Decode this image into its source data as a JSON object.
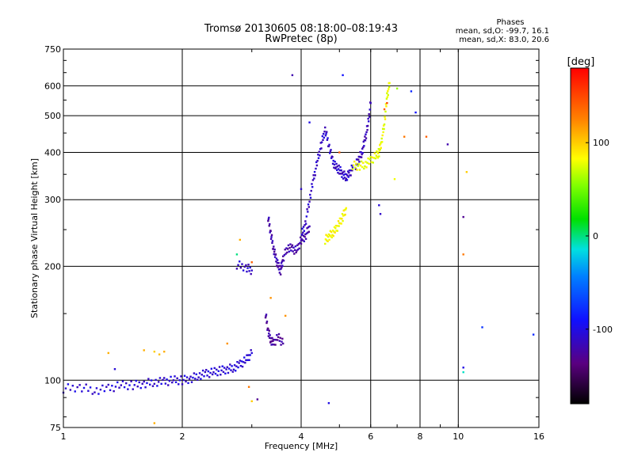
{
  "chart_data": {
    "type": "scatter",
    "title": "Tromsø 20130605 08:18:00–08:19:43",
    "subtitle": "RwPretec (8p)",
    "xlabel": "Frequency [MHz]",
    "ylabel": "Stationary phase Virtual Height [km]",
    "x_scale": "log",
    "y_scale": "log",
    "xlim": [
      1,
      16
    ],
    "ylim": [
      75,
      750
    ],
    "x_ticks": [
      1,
      2,
      4,
      6,
      8,
      10,
      16
    ],
    "x_tick_labels": [
      "1",
      "2",
      "4",
      "6",
      "8",
      "10",
      "16"
    ],
    "y_ticks": [
      75,
      100,
      200,
      300,
      400,
      500,
      600,
      750
    ],
    "y_tick_labels": [
      "75",
      "100",
      "200",
      "300",
      "400",
      "500",
      "600",
      "750"
    ],
    "grid": true,
    "stats": {
      "heading": "Phases",
      "line_o": "mean, sd,O: -99.7, 16.1",
      "line_x": "mean, sd,X: 83.0, 20.6"
    },
    "colorbar": {
      "label": "[deg]",
      "range": [
        -180,
        180
      ],
      "ticks": [
        100,
        0,
        -100
      ],
      "tick_labels": [
        "100",
        "0",
        "-100"
      ]
    },
    "trace_segments": [
      {
        "phase": -105,
        "points": [
          [
            1.0,
            95
          ],
          [
            1.1,
            96
          ],
          [
            1.2,
            94
          ],
          [
            1.3,
            95
          ],
          [
            1.4,
            97
          ],
          [
            1.5,
            97
          ],
          [
            1.6,
            98
          ],
          [
            1.7,
            99
          ],
          [
            1.8,
            99
          ],
          [
            1.9,
            100
          ],
          [
            2.0,
            100
          ],
          [
            2.1,
            101
          ],
          [
            2.2,
            103
          ],
          [
            2.3,
            104
          ],
          [
            2.4,
            105
          ],
          [
            2.5,
            106
          ],
          [
            2.6,
            107
          ],
          [
            2.7,
            108
          ],
          [
            2.8,
            110
          ],
          [
            2.9,
            113
          ],
          [
            3.0,
            118
          ]
        ]
      },
      {
        "phase": -110,
        "points": [
          [
            2.75,
            202
          ],
          [
            2.9,
            199
          ],
          [
            3.0,
            195
          ]
        ]
      },
      {
        "phase": -120,
        "points": [
          [
            3.3,
            270
          ],
          [
            3.35,
            245
          ],
          [
            3.4,
            225
          ],
          [
            3.45,
            210
          ],
          [
            3.5,
            200
          ],
          [
            3.55,
            195
          ],
          [
            3.6,
            210
          ],
          [
            3.7,
            225
          ],
          [
            3.8,
            222
          ],
          [
            3.9,
            220
          ],
          [
            4.0,
            235
          ],
          [
            4.1,
            240
          ],
          [
            4.2,
            255
          ]
        ]
      },
      {
        "phase": -125,
        "points": [
          [
            3.25,
            150
          ],
          [
            3.3,
            135
          ],
          [
            3.35,
            128
          ],
          [
            3.4,
            125
          ],
          [
            3.5,
            130
          ],
          [
            3.6,
            125
          ]
        ]
      },
      {
        "phase": -110,
        "points": [
          [
            4.0,
            240
          ],
          [
            4.1,
            260
          ],
          [
            4.2,
            300
          ],
          [
            4.3,
            340
          ],
          [
            4.4,
            380
          ],
          [
            4.5,
            420
          ],
          [
            4.6,
            460
          ],
          [
            4.7,
            420
          ],
          [
            4.8,
            380
          ],
          [
            4.9,
            365
          ],
          [
            5.0,
            360
          ],
          [
            5.1,
            350
          ],
          [
            5.2,
            345
          ],
          [
            5.3,
            350
          ],
          [
            5.4,
            365
          ]
        ]
      },
      {
        "phase": -115,
        "points": [
          [
            5.5,
            370
          ],
          [
            5.6,
            385
          ],
          [
            5.7,
            400
          ],
          [
            5.8,
            430
          ],
          [
            5.9,
            470
          ],
          [
            6.0,
            540
          ]
        ]
      },
      {
        "phase": 85,
        "points": [
          [
            4.6,
            235
          ],
          [
            4.7,
            240
          ],
          [
            4.8,
            245
          ],
          [
            4.9,
            250
          ],
          [
            5.0,
            260
          ],
          [
            5.1,
            270
          ],
          [
            5.2,
            285
          ]
        ]
      },
      {
        "phase": 80,
        "points": [
          [
            5.4,
            370
          ],
          [
            5.6,
            368
          ],
          [
            5.8,
            372
          ],
          [
            6.0,
            380
          ],
          [
            6.2,
            392
          ],
          [
            6.3,
            400
          ],
          [
            6.4,
            430
          ],
          [
            6.5,
            480
          ],
          [
            6.6,
            560
          ],
          [
            6.7,
            610
          ]
        ]
      }
    ],
    "scatter_points": [
      {
        "x": 1.3,
        "y": 118,
        "phase": 110
      },
      {
        "x": 1.6,
        "y": 120,
        "phase": 110
      },
      {
        "x": 1.7,
        "y": 119,
        "phase": 100
      },
      {
        "x": 1.75,
        "y": 117,
        "phase": 105
      },
      {
        "x": 1.8,
        "y": 119,
        "phase": 110
      },
      {
        "x": 2.6,
        "y": 125,
        "phase": 120
      },
      {
        "x": 2.8,
        "y": 235,
        "phase": 110
      },
      {
        "x": 2.75,
        "y": 215,
        "phase": 0
      },
      {
        "x": 3.0,
        "y": 205,
        "phase": 140
      },
      {
        "x": 2.95,
        "y": 96,
        "phase": 130
      },
      {
        "x": 3.0,
        "y": 88,
        "phase": 100
      },
      {
        "x": 3.1,
        "y": 89,
        "phase": -130
      },
      {
        "x": 1.7,
        "y": 77,
        "phase": 110
      },
      {
        "x": 1.35,
        "y": 107,
        "phase": -105
      },
      {
        "x": 3.35,
        "y": 165,
        "phase": 120
      },
      {
        "x": 3.65,
        "y": 148,
        "phase": 120
      },
      {
        "x": 3.8,
        "y": 640,
        "phase": -120
      },
      {
        "x": 4.0,
        "y": 320,
        "phase": -110
      },
      {
        "x": 4.2,
        "y": 480,
        "phase": -100
      },
      {
        "x": 4.7,
        "y": 87,
        "phase": -100
      },
      {
        "x": 5.0,
        "y": 400,
        "phase": 140
      },
      {
        "x": 5.1,
        "y": 640,
        "phase": -90
      },
      {
        "x": 6.3,
        "y": 290,
        "phase": -105
      },
      {
        "x": 6.35,
        "y": 275,
        "phase": -110
      },
      {
        "x": 6.5,
        "y": 520,
        "phase": 140
      },
      {
        "x": 6.6,
        "y": 540,
        "phase": 150
      },
      {
        "x": 6.9,
        "y": 340,
        "phase": 80
      },
      {
        "x": 7.0,
        "y": 590,
        "phase": 60
      },
      {
        "x": 7.3,
        "y": 440,
        "phase": 130
      },
      {
        "x": 7.6,
        "y": 580,
        "phase": -80
      },
      {
        "x": 7.8,
        "y": 510,
        "phase": -90
      },
      {
        "x": 8.3,
        "y": 440,
        "phase": 140
      },
      {
        "x": 9.4,
        "y": 420,
        "phase": -120
      },
      {
        "x": 10.3,
        "y": 270,
        "phase": -130
      },
      {
        "x": 10.3,
        "y": 215,
        "phase": 130
      },
      {
        "x": 10.3,
        "y": 108,
        "phase": -100
      },
      {
        "x": 10.3,
        "y": 105,
        "phase": -10
      },
      {
        "x": 10.5,
        "y": 355,
        "phase": 100
      },
      {
        "x": 11.5,
        "y": 138,
        "phase": -75
      },
      {
        "x": 15.5,
        "y": 132,
        "phase": -80
      }
    ]
  }
}
